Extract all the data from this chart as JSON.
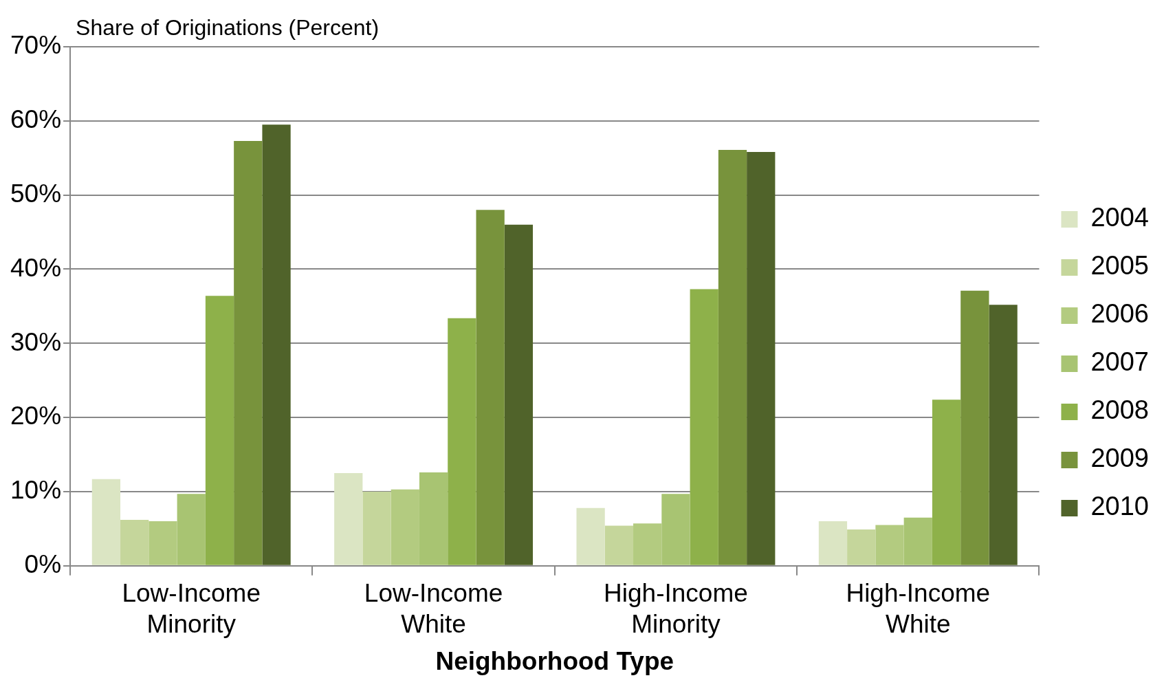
{
  "chart_data": {
    "type": "bar",
    "ylabel": "Share of Originations (Percent)",
    "xlabel": "Neighborhood Type",
    "categories": [
      "Low-Income Minority",
      "Low-Income White",
      "High-Income Minority",
      "High-Income White"
    ],
    "series": [
      {
        "name": "2004",
        "color": "#dbe5c3",
        "values": [
          11.7,
          12.5,
          7.8,
          6.0
        ]
      },
      {
        "name": "2005",
        "color": "#c5d69b",
        "values": [
          6.2,
          10.0,
          5.4,
          4.9
        ]
      },
      {
        "name": "2006",
        "color": "#b3cb80",
        "values": [
          6.0,
          10.3,
          5.7,
          5.5
        ]
      },
      {
        "name": "2007",
        "color": "#a8c472",
        "values": [
          9.7,
          12.6,
          9.7,
          6.5
        ]
      },
      {
        "name": "2008",
        "color": "#8eb14a",
        "values": [
          36.4,
          33.4,
          37.3,
          22.4
        ]
      },
      {
        "name": "2009",
        "color": "#78933c",
        "values": [
          57.3,
          48.0,
          56.1,
          37.1
        ]
      },
      {
        "name": "2010",
        "color": "#50632a",
        "values": [
          59.5,
          46.0,
          55.8,
          35.2
        ]
      }
    ],
    "ylim": [
      0,
      70
    ],
    "yticks": [
      {
        "value": 0,
        "label": "0%"
      },
      {
        "value": 10,
        "label": "10%"
      },
      {
        "value": 20,
        "label": "20%"
      },
      {
        "value": 30,
        "label": "30%"
      },
      {
        "value": 40,
        "label": "40%"
      },
      {
        "value": 50,
        "label": "50%"
      },
      {
        "value": 60,
        "label": "60%"
      },
      {
        "value": 70,
        "label": "70%"
      }
    ],
    "grid": "y",
    "legend": "right"
  }
}
